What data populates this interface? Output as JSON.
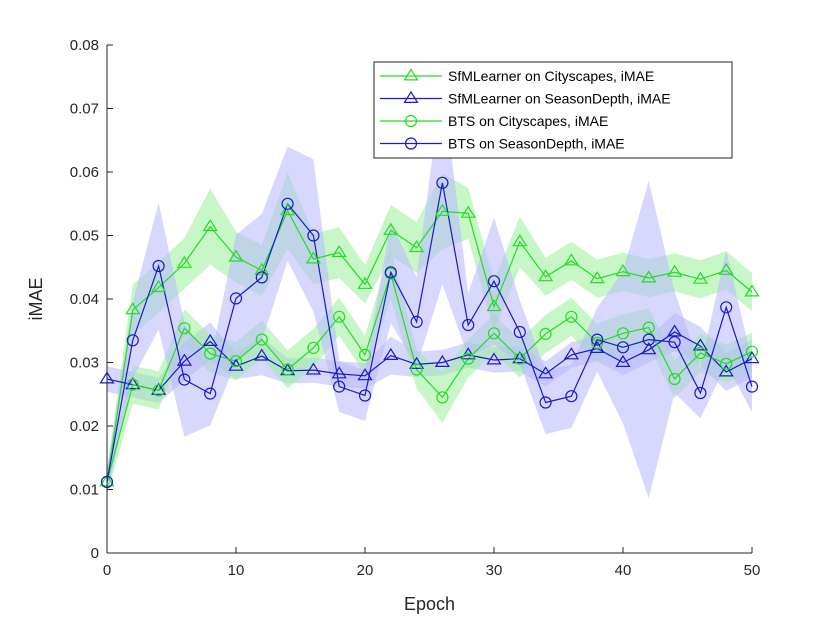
{
  "chart_data": {
    "type": "line",
    "title": "",
    "xlabel": "Epoch",
    "ylabel": "iMAE",
    "xlim": [
      0,
      50
    ],
    "ylim": [
      0,
      0.08
    ],
    "xticks": [
      "0",
      "10",
      "20",
      "30",
      "40",
      "50"
    ],
    "yticks": [
      "0",
      "0.01",
      "0.02",
      "0.03",
      "0.04",
      "0.05",
      "0.06",
      "0.07",
      "0.08"
    ],
    "x": [
      0,
      2,
      4,
      6,
      8,
      10,
      12,
      14,
      16,
      18,
      20,
      22,
      24,
      26,
      28,
      30,
      32,
      34,
      36,
      38,
      40,
      42,
      44,
      46,
      48,
      50
    ],
    "grid": false,
    "legend_position": "top-right",
    "series": [
      {
        "name": "SfMLearner on Cityscapes, iMAE",
        "color": "#22dd22",
        "band_color": "#99f099",
        "marker": "triangle",
        "values": [
          0.0112,
          0.0383,
          0.0418,
          0.0456,
          0.0514,
          0.0466,
          0.0445,
          0.0539,
          0.0463,
          0.0473,
          0.0423,
          0.0508,
          0.0481,
          0.0538,
          0.0535,
          0.0388,
          0.049,
          0.0435,
          0.046,
          0.0432,
          0.0443,
          0.0433,
          0.0442,
          0.0431,
          0.0445,
          0.0411
        ],
        "band": [
          0.002,
          0.004,
          0.004,
          0.004,
          0.006,
          0.004,
          0.004,
          0.006,
          0.004,
          0.004,
          0.003,
          0.004,
          0.004,
          0.006,
          0.004,
          0.004,
          0.004,
          0.003,
          0.003,
          0.003,
          0.003,
          0.003,
          0.003,
          0.003,
          0.003,
          0.003
        ]
      },
      {
        "name": "SfMLearner on SeasonDepth, iMAE",
        "color": "#1a1acc",
        "band_color": "#b8b8ff",
        "marker": "triangle",
        "values": [
          0.0274,
          0.0265,
          0.0256,
          0.0302,
          0.0333,
          0.0294,
          0.031,
          0.0287,
          0.0288,
          0.0282,
          0.0279,
          0.0311,
          0.0297,
          0.03,
          0.0312,
          0.0304,
          0.0306,
          0.0282,
          0.0312,
          0.0322,
          0.03,
          0.032,
          0.0348,
          0.0326,
          0.0285,
          0.0306
        ],
        "band": [
          0.002,
          0.002,
          0.002,
          0.003,
          0.003,
          0.002,
          0.003,
          0.002,
          0.002,
          0.002,
          0.002,
          0.003,
          0.002,
          0.002,
          0.002,
          0.002,
          0.002,
          0.002,
          0.002,
          0.002,
          0.002,
          0.002,
          0.003,
          0.003,
          0.003,
          0.003
        ]
      },
      {
        "name": "BTS on Cityscapes, iMAE",
        "color": "#22dd22",
        "band_color": "#99f099",
        "marker": "circle",
        "values": [
          0.0112,
          0.0265,
          0.0256,
          0.0354,
          0.0314,
          0.0302,
          0.0336,
          0.0289,
          0.0323,
          0.0372,
          0.0312,
          0.044,
          0.0289,
          0.0245,
          0.0306,
          0.0346,
          0.0306,
          0.0345,
          0.0372,
          0.0331,
          0.0346,
          0.0355,
          0.0274,
          0.0315,
          0.0298,
          0.0317
        ],
        "band": [
          0.002,
          0.003,
          0.003,
          0.003,
          0.003,
          0.003,
          0.003,
          0.003,
          0.003,
          0.003,
          0.003,
          0.004,
          0.003,
          0.004,
          0.003,
          0.003,
          0.003,
          0.003,
          0.003,
          0.003,
          0.003,
          0.003,
          0.003,
          0.003,
          0.003,
          0.003
        ]
      },
      {
        "name": "BTS on SeasonDepth, iMAE",
        "color": "#1a1acc",
        "band_color": "#b8b8ff",
        "marker": "circle",
        "values": [
          0.0112,
          0.0335,
          0.0452,
          0.0273,
          0.0251,
          0.0401,
          0.0434,
          0.055,
          0.05,
          0.0262,
          0.0248,
          0.0442,
          0.0364,
          0.0583,
          0.0359,
          0.0428,
          0.0348,
          0.0237,
          0.0247,
          0.0336,
          0.0324,
          0.0336,
          0.0332,
          0.0252,
          0.0387,
          0.0262
        ],
        "band": [
          0.002,
          0.006,
          0.01,
          0.009,
          0.005,
          0.01,
          0.01,
          0.009,
          0.012,
          0.004,
          0.004,
          0.008,
          0.007,
          0.016,
          0.005,
          0.01,
          0.005,
          0.005,
          0.005,
          0.005,
          0.012,
          0.025,
          0.008,
          0.004,
          0.009,
          0.004
        ]
      }
    ]
  }
}
